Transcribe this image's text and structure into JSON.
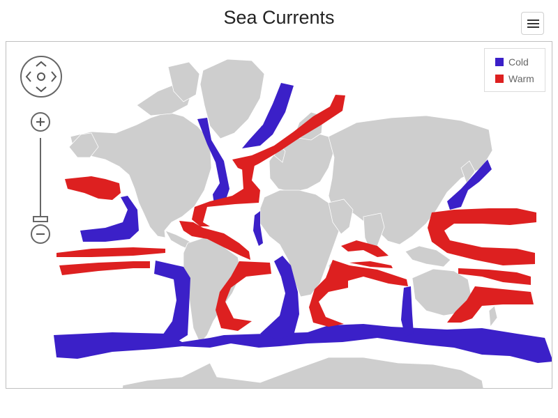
{
  "title": "Sea Currents",
  "menu": {
    "icon": "hamburger-menu-icon"
  },
  "navigation": {
    "pan_icon": "pan-arrows-icon",
    "zoom_in_icon": "plus-icon",
    "zoom_out_icon": "minus-icon",
    "zoom_level": 0
  },
  "legend": {
    "items": [
      {
        "label": "Cold",
        "color": "#3b20c8"
      },
      {
        "label": "Warm",
        "color": "#dd2020"
      }
    ]
  },
  "colors": {
    "land": "#cecece",
    "ocean": "#ffffff"
  }
}
